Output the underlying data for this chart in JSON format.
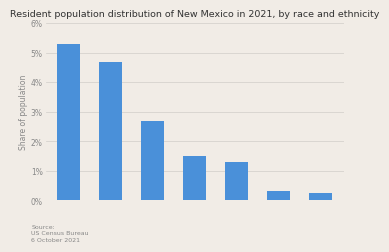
{
  "title": "Resident population distribution of New Mexico in 2021, by race and ethnicity",
  "ylabel": "Share of population",
  "values": [
    5.3,
    4.7,
    2.7,
    1.5,
    1.3,
    0.3,
    0.25
  ],
  "bar_color": "#4a90d9",
  "ylim": [
    0,
    6
  ],
  "ytick_vals": [
    0,
    1,
    2,
    3,
    4,
    5,
    6
  ],
  "ytick_labels": [
    "0%",
    "1%",
    "2%",
    "3%",
    "4%",
    "5%",
    "6%"
  ],
  "source_text": "Source:\nUS Census Bureau\n6 October 2021",
  "background_color": "#f1ece6",
  "title_fontsize": 6.8,
  "label_fontsize": 5.5,
  "source_fontsize": 4.5,
  "bar_width": 0.55
}
